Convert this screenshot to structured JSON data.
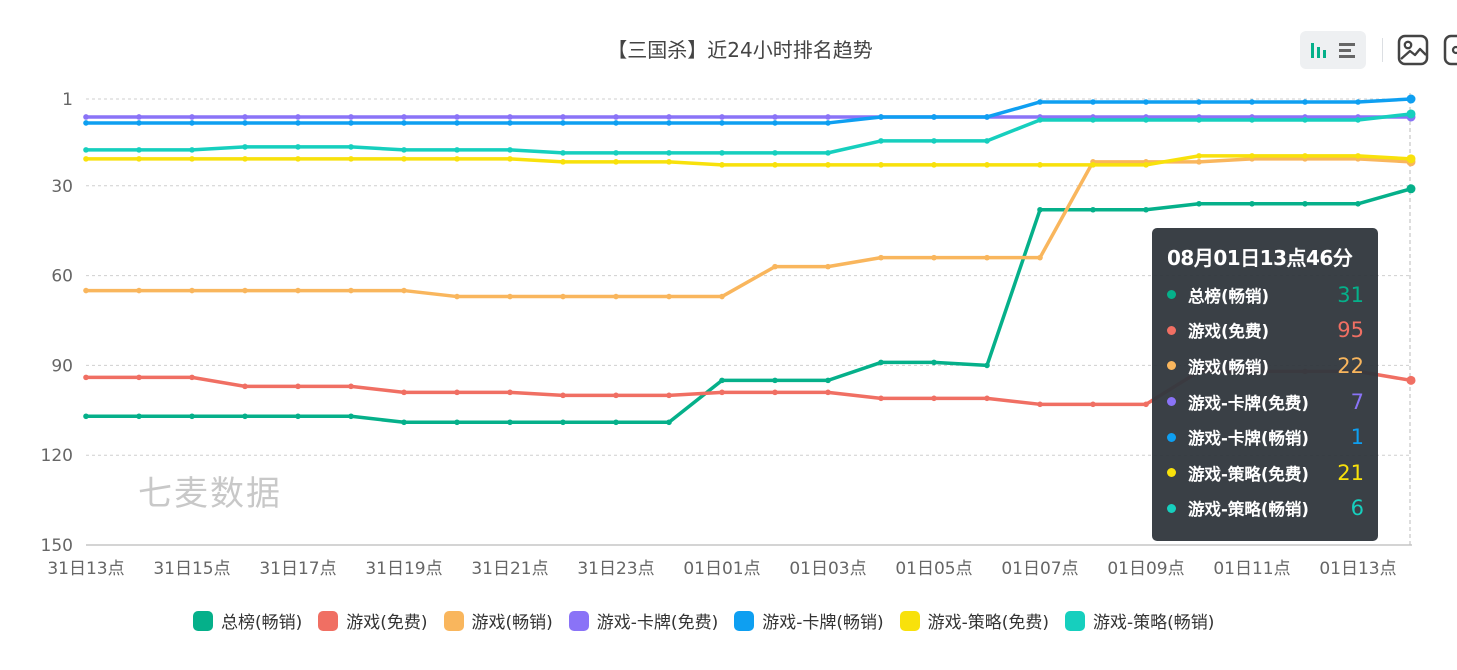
{
  "chart_data": {
    "type": "line",
    "title": "【三国杀】近24小时排名趋势",
    "y_inverse": true,
    "ylim": [
      1,
      150
    ],
    "yticks": [
      1,
      30,
      60,
      90,
      120,
      150
    ],
    "x": [
      "31日13点",
      "",
      "31日15点",
      "",
      "31日17点",
      "",
      "31日19点",
      "",
      "31日21点",
      "",
      "31日23点",
      "",
      "01日01点",
      "",
      "01日03点",
      "",
      "01日05点",
      "",
      "01日07点",
      "",
      "01日09点",
      "",
      "01日11点",
      "",
      "01日13点",
      ""
    ],
    "xtick_labels": [
      "31日13点",
      "31日15点",
      "31日17点",
      "31日19点",
      "31日21点",
      "31日23点",
      "01日01点",
      "01日03点",
      "01日05点",
      "01日07点",
      "01日09点",
      "01日11点",
      "01日13点"
    ],
    "grid": true,
    "legend_position": "bottom",
    "series": [
      {
        "name": "总榜(畅销)",
        "color": "#05b08a",
        "values": [
          107,
          107,
          107,
          107,
          107,
          107,
          109,
          109,
          109,
          109,
          109,
          109,
          95,
          95,
          95,
          89,
          89,
          90,
          38,
          38,
          38,
          36,
          36,
          36,
          36,
          31
        ]
      },
      {
        "name": "游戏(免费)",
        "color": "#f06f63",
        "values": [
          94,
          94,
          94,
          97,
          97,
          97,
          99,
          99,
          99,
          100,
          100,
          100,
          99,
          99,
          99,
          101,
          101,
          101,
          103,
          103,
          103,
          92,
          92,
          92,
          92,
          95
        ]
      },
      {
        "name": "游戏(畅销)",
        "color": "#f9b65d",
        "values": [
          65,
          65,
          65,
          65,
          65,
          65,
          65,
          67,
          67,
          67,
          67,
          67,
          67,
          57,
          57,
          54,
          54,
          54,
          54,
          22,
          22,
          22,
          21,
          21,
          21,
          22
        ]
      },
      {
        "name": "游戏-卡牌(免费)",
        "color": "#8a73f7",
        "values": [
          7,
          7,
          7,
          7,
          7,
          7,
          7,
          7,
          7,
          7,
          7,
          7,
          7,
          7,
          7,
          7,
          7,
          7,
          7,
          7,
          7,
          7,
          7,
          7,
          7,
          7
        ]
      },
      {
        "name": "游戏-卡牌(畅销)",
        "color": "#0e9ff1",
        "values": [
          9,
          9,
          9,
          9,
          9,
          9,
          9,
          9,
          9,
          9,
          9,
          9,
          9,
          9,
          9,
          7,
          7,
          7,
          2,
          2,
          2,
          2,
          2,
          2,
          2,
          1
        ]
      },
      {
        "name": "游戏-策略(免费)",
        "color": "#f8e10b",
        "values": [
          21,
          21,
          21,
          21,
          21,
          21,
          21,
          21,
          21,
          22,
          22,
          22,
          23,
          23,
          23,
          23,
          23,
          23,
          23,
          23,
          23,
          20,
          20,
          20,
          20,
          21
        ]
      },
      {
        "name": "游戏-策略(畅销)",
        "color": "#16cfbe",
        "values": [
          18,
          18,
          18,
          17,
          17,
          17,
          18,
          18,
          18,
          19,
          19,
          19,
          19,
          19,
          19,
          15,
          15,
          15,
          8,
          8,
          8,
          8,
          8,
          8,
          8,
          6
        ]
      }
    ],
    "tooltip": {
      "title": "08月01日13点46分",
      "rows": [
        {
          "name": "总榜(畅销)",
          "value": "31",
          "color": "#05b08a"
        },
        {
          "name": "游戏(免费)",
          "value": "95",
          "color": "#f06f63"
        },
        {
          "name": "游戏(畅销)",
          "value": "22",
          "color": "#f9b65d"
        },
        {
          "name": "游戏-卡牌(免费)",
          "value": "7",
          "color": "#8a73f7"
        },
        {
          "name": "游戏-卡牌(畅销)",
          "value": "1",
          "color": "#0e9ff1"
        },
        {
          "name": "游戏-策略(免费)",
          "value": "21",
          "color": "#f8e10b"
        },
        {
          "name": "游戏-策略(畅销)",
          "value": "6",
          "color": "#16cfbe"
        }
      ]
    }
  },
  "watermark": "七麦数据",
  "toolbar": {
    "bar_icon": "bar-chart-icon",
    "list_icon": "list-icon",
    "image_icon": "save-image-icon",
    "extra_icon": "download-icon",
    "accent": "#05b08a"
  }
}
